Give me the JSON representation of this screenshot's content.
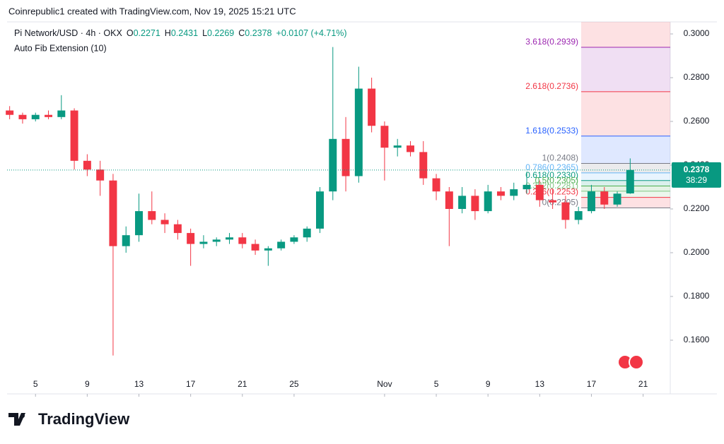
{
  "header": {
    "attribution": "Coinrepublic1 created with TradingView.com, Nov 19, 2025 15:21 UTC"
  },
  "footer": {
    "brand": "TradingView"
  },
  "chart_data": {
    "type": "candlestick",
    "title": "Pi Network/USD · 4h · OKX",
    "ohlc_labels": [
      "O",
      "H",
      "L",
      "C"
    ],
    "change": "+0.0107 (+4.71%)",
    "indicator": "Auto Fib Extension (10)",
    "countdown": "38:29",
    "up_color": "#089981",
    "down_color": "#f23645",
    "x": [
      3,
      4,
      5,
      6,
      7,
      8,
      9,
      10,
      11,
      12,
      13,
      14,
      15,
      16,
      17,
      18,
      19,
      20,
      21,
      22,
      23,
      24,
      25,
      26,
      27,
      28,
      29,
      30,
      31,
      32,
      33,
      34,
      35,
      36,
      37,
      38,
      39,
      40,
      41,
      42,
      43,
      44,
      45,
      46,
      47,
      48,
      49,
      50,
      51
    ],
    "open": [
      0.265,
      0.263,
      0.261,
      0.263,
      0.262,
      0.265,
      0.242,
      0.238,
      0.233,
      0.203,
      0.208,
      0.219,
      0.215,
      0.213,
      0.209,
      0.204,
      0.205,
      0.206,
      0.207,
      0.204,
      0.201,
      0.202,
      0.205,
      0.207,
      0.211,
      0.228,
      0.252,
      0.235,
      0.275,
      0.258,
      0.248,
      0.249,
      0.246,
      0.234,
      0.228,
      0.22,
      0.226,
      0.219,
      0.228,
      0.226,
      0.229,
      0.231,
      0.224,
      0.223,
      0.215,
      0.219,
      0.228,
      0.222,
      0.2271
    ],
    "high": [
      0.267,
      0.264,
      0.264,
      0.265,
      0.272,
      0.266,
      0.245,
      0.242,
      0.236,
      0.212,
      0.227,
      0.228,
      0.218,
      0.215,
      0.211,
      0.208,
      0.207,
      0.209,
      0.209,
      0.206,
      0.203,
      0.206,
      0.208,
      0.212,
      0.23,
      0.294,
      0.262,
      0.285,
      0.28,
      0.26,
      0.252,
      0.251,
      0.251,
      0.236,
      0.23,
      0.23,
      0.229,
      0.231,
      0.23,
      0.232,
      0.237,
      0.233,
      0.229,
      0.226,
      0.221,
      0.231,
      0.23,
      0.228,
      0.2431
    ],
    "low": [
      0.261,
      0.259,
      0.26,
      0.261,
      0.261,
      0.238,
      0.235,
      0.226,
      0.153,
      0.2,
      0.205,
      0.213,
      0.209,
      0.206,
      0.194,
      0.202,
      0.203,
      0.204,
      0.202,
      0.199,
      0.194,
      0.201,
      0.204,
      0.205,
      0.209,
      0.224,
      0.228,
      0.232,
      0.255,
      0.233,
      0.244,
      0.244,
      0.231,
      0.224,
      0.203,
      0.218,
      0.215,
      0.218,
      0.224,
      0.224,
      0.227,
      0.221,
      0.22,
      0.211,
      0.213,
      0.218,
      0.22,
      0.221,
      0.2269
    ],
    "close": [
      0.263,
      0.261,
      0.263,
      0.262,
      0.265,
      0.242,
      0.238,
      0.233,
      0.203,
      0.208,
      0.219,
      0.215,
      0.213,
      0.209,
      0.204,
      0.205,
      0.206,
      0.207,
      0.204,
      0.201,
      0.202,
      0.205,
      0.207,
      0.211,
      0.228,
      0.252,
      0.235,
      0.275,
      0.258,
      0.248,
      0.249,
      0.246,
      0.234,
      0.228,
      0.22,
      0.226,
      0.219,
      0.228,
      0.226,
      0.229,
      0.231,
      0.224,
      0.223,
      0.215,
      0.219,
      0.228,
      0.222,
      0.227,
      0.2378
    ],
    "xlim": [
      2.8,
      54.1
    ],
    "ylim": [
      0.1445,
      0.3055
    ],
    "xticks": [
      5,
      9,
      13,
      17,
      21,
      25,
      {
        "value": 32,
        "label": "Nov"
      },
      {
        "value": 36,
        "label": "5"
      },
      {
        "value": 40,
        "label": "9"
      },
      {
        "value": 44,
        "label": "13"
      },
      {
        "value": 48,
        "label": "17"
      },
      {
        "value": 52,
        "label": "21"
      }
    ],
    "yticks": [
      {
        "value": 0.16,
        "label": "0.1600"
      },
      {
        "value": 0.18,
        "label": "0.1800"
      },
      {
        "value": 0.2,
        "label": "0.2000"
      },
      {
        "value": 0.22,
        "label": "0.2200"
      },
      {
        "value": 0.24,
        "label": "0.2400"
      },
      {
        "value": 0.26,
        "label": "0.2600"
      },
      {
        "value": 0.28,
        "label": "0.2800"
      },
      {
        "value": 0.3,
        "label": "0.3000"
      }
    ],
    "grid": false,
    "fib_levels": [
      {
        "label": "3.618(0.2939)",
        "value": 0.2939,
        "color": "#9c27b0"
      },
      {
        "label": "2.618(0.2736)",
        "value": 0.2736,
        "color": "#f23645"
      },
      {
        "label": "1.618(0.2533)",
        "value": 0.2533,
        "color": "#2962ff"
      },
      {
        "label": "1(0.2408)",
        "value": 0.2408,
        "color": "#787b86"
      },
      {
        "label": "0.786(0.2365)",
        "value": 0.2365,
        "color": "#64b5f6"
      },
      {
        "label": "0.618(0.2330)",
        "value": 0.233,
        "color": "#089981"
      },
      {
        "label": "0.5(0.2305)",
        "value": 0.2305,
        "color": "#4caf50"
      },
      {
        "label": "0.382(0.2281)",
        "value": 0.2281,
        "color": "#81c784"
      },
      {
        "label": "0.236(0.2253)",
        "value": 0.2253,
        "color": "#f23645"
      },
      {
        "label": "0(0.2205)",
        "value": 0.2205,
        "color": "#787b86"
      }
    ]
  }
}
